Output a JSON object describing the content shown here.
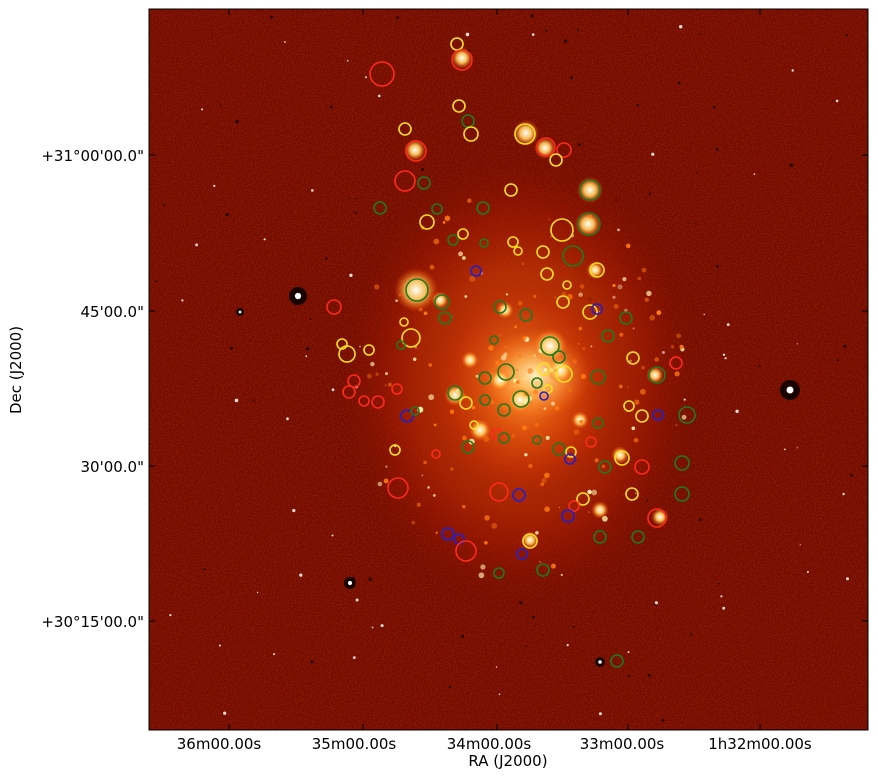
{
  "figure": {
    "x_axis_label": "RA (J2000)",
    "y_axis_label": "Dec (J2000)",
    "x_ticks": [
      "36m00.00s",
      "35m00.00s",
      "34m00.00s",
      "33m00.00s",
      "1h32m00.00s"
    ],
    "y_ticks": [
      "+31°00'00.0\"",
      "45'00.0\"",
      "30'00.0\"",
      "+30°15'00.0\""
    ],
    "colors": {
      "background_image": "#6e0a00",
      "glow_hot": "#fff2b0",
      "glow_mid": "#ff7a10",
      "glow_warm": "#c02000",
      "circle_red": "#ff2a1a",
      "circle_yellow": "#ffe020",
      "circle_green": "#1f7a1f",
      "circle_blue": "#2020d0"
    }
  }
}
